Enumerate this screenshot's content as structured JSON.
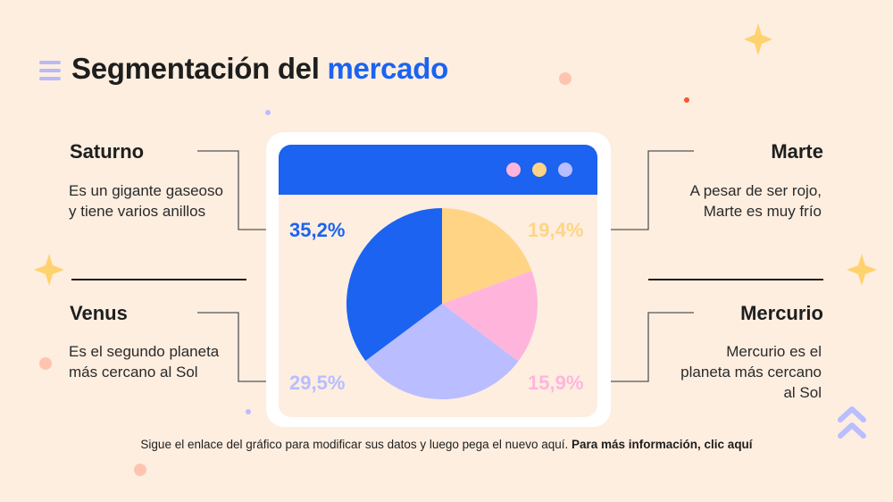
{
  "title": {
    "part1": "Segmentación del ",
    "part2": "mercado"
  },
  "blocks": {
    "saturno": {
      "name": "Saturno",
      "text1": "Es un gigante gaseoso",
      "text2": "y tiene varios anillos"
    },
    "venus": {
      "name": "Venus",
      "text1": "Es el segundo planeta",
      "text2": "más cercano al Sol"
    },
    "marte": {
      "name": "Marte",
      "text1": "A pesar de ser rojo,",
      "text2": "Marte es muy frío"
    },
    "mercurio": {
      "name": "Mercurio",
      "text1": "Mercurio es el",
      "text2": "planeta más cercano",
      "text3": "al Sol"
    }
  },
  "footer": {
    "text": "Sigue el enlace del gráfico para modificar sus datos y luego pega el nuevo aquí. ",
    "link": "Para más información, clic aquí"
  },
  "chart_data": {
    "type": "pie",
    "slices": [
      {
        "label": "35,2%",
        "value": 35.2,
        "color": "#1b63f0"
      },
      {
        "label": "19,4%",
        "value": 19.4,
        "color": "#ffd485"
      },
      {
        "label": "15,9%",
        "value": 15.9,
        "color": "#ffb5db"
      },
      {
        "label": "29,5%",
        "value": 29.5,
        "color": "#babdff"
      }
    ]
  },
  "colors": {
    "accent": "#1b63f0",
    "background": "#fdeee0",
    "star": "#ffd270",
    "window_dots": [
      "#ffb5db",
      "#ffd485",
      "#babdff"
    ]
  }
}
